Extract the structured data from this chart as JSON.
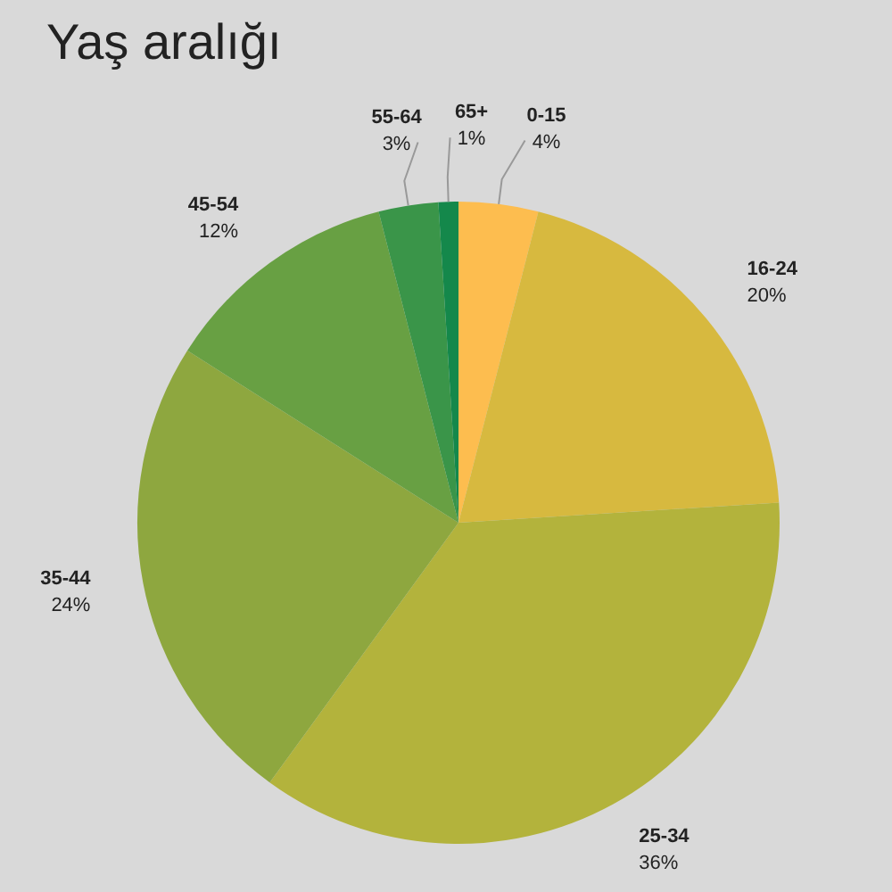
{
  "chart_data": {
    "type": "pie",
    "title": "Yaş aralığı",
    "categories": [
      "0-15",
      "16-24",
      "25-34",
      "35-44",
      "45-54",
      "55-64",
      "65+"
    ],
    "values": [
      4,
      20,
      36,
      24,
      12,
      3,
      1
    ],
    "value_labels": [
      "4%",
      "20%",
      "36%",
      "24%",
      "12%",
      "3%",
      "1%"
    ],
    "colors": [
      "#fdbd4f",
      "#d7b93f",
      "#b3b33c",
      "#8ea73f",
      "#68a043",
      "#3a9549",
      "#14884b"
    ],
    "legend": false
  }
}
